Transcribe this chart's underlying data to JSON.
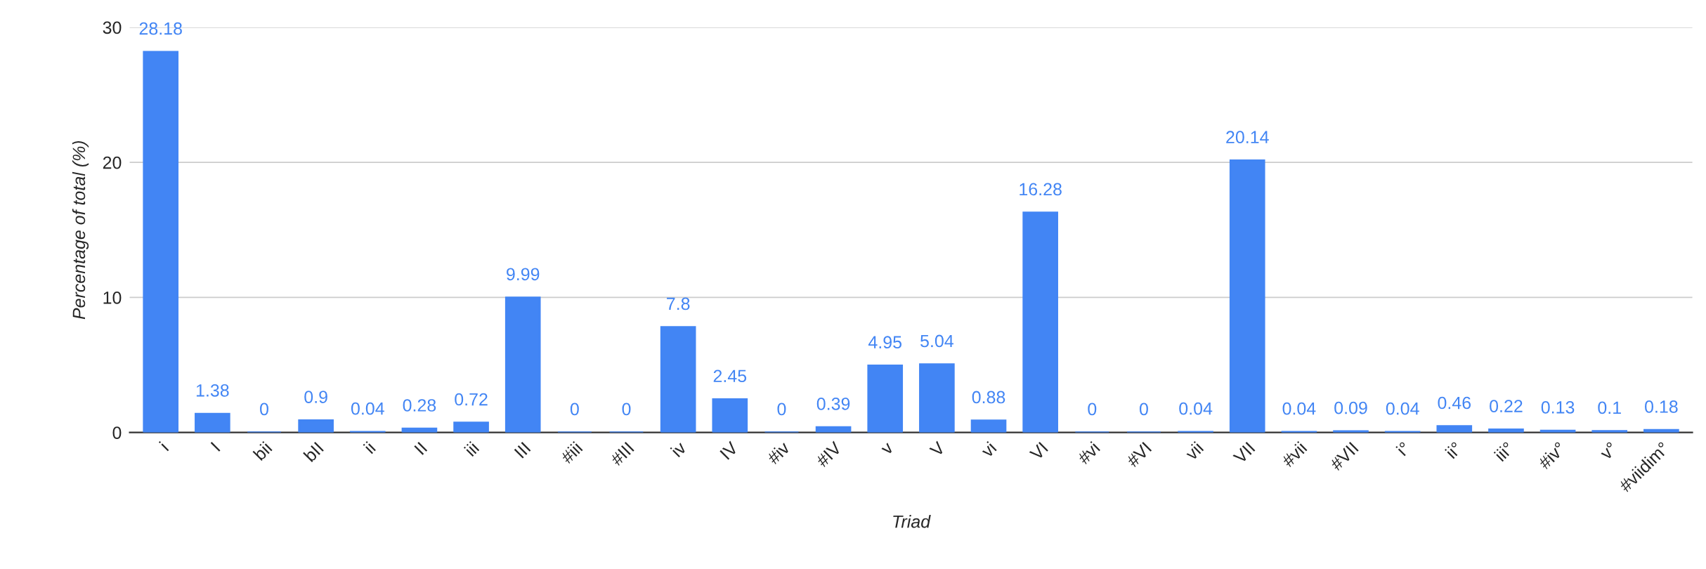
{
  "chart_data": {
    "type": "bar",
    "xlabel": "Triad",
    "ylabel": "Percentage of total (%)",
    "categories": [
      "i",
      "I",
      "bii",
      "bII",
      "ii",
      "II",
      "iii",
      "III",
      "#iii",
      "#III",
      "iv",
      "IV",
      "#iv",
      "#IV",
      "v",
      "V",
      "vi",
      "VI",
      "#vi",
      "#VI",
      "vii",
      "VII",
      "#vii",
      "#VII",
      "i°",
      "ii°",
      "iii°",
      "#iv°",
      "v°",
      "#viidim°"
    ],
    "values": [
      28.18,
      1.38,
      0,
      0.9,
      0.04,
      0.28,
      0.72,
      9.99,
      0,
      0,
      7.8,
      2.45,
      0,
      0.39,
      4.95,
      5.04,
      0.88,
      16.28,
      0,
      0,
      0.04,
      20.14,
      0.04,
      0.09,
      0.04,
      0.46,
      0.22,
      0.13,
      0.1,
      0.18
    ],
    "color": "#4285f4",
    "ylim": [
      0,
      30
    ],
    "yticks": [
      0,
      10,
      20,
      30
    ],
    "grid": "y",
    "data_labels": true,
    "legend": false
  }
}
